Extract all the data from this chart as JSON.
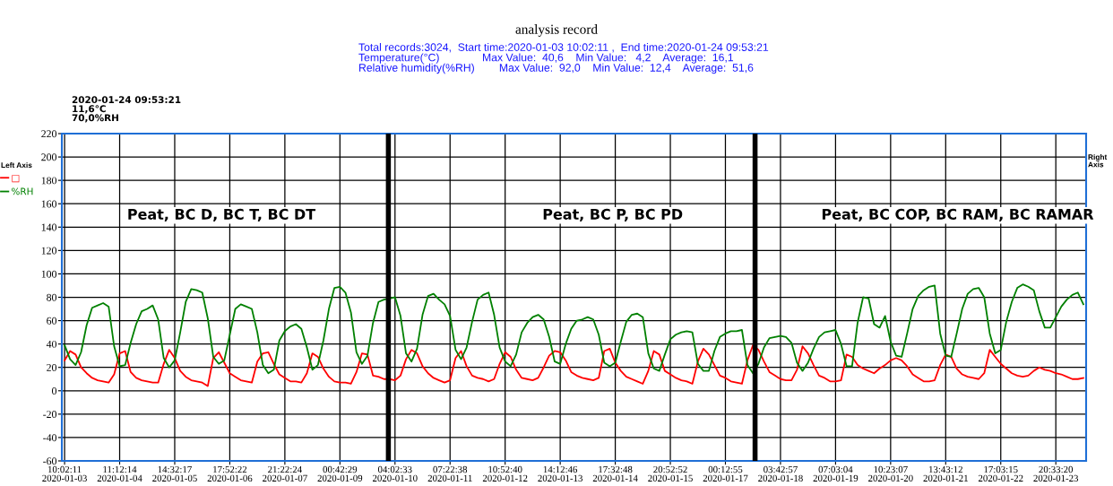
{
  "chart_data": {
    "type": "line",
    "title": "analysis record",
    "subtitle": "Total records:3024,  Start time:2020-01-03 10:02:11 ,  End time:2020-01-24 09:53:21\nTemperature(°C)              Max Value:  40,6    Min Value:   4,2    Average:  16,1\nRelative humidity(%RH)        Max Value:  92,0    Min Value:  12,4    Average:  51,6",
    "legend_title": "Left Axis",
    "annotations": [
      "Peat, BC D, BC T, BC DT",
      "Peat, BC P, BC PD",
      "Peat, BC COP, BC RAM, BC RAMAR",
      "2020-01-24 09:53:21\n11,6°C\n70,0%RH",
      "Right Axis"
    ],
    "categories": [
      "10:02:11\n2020-01-03",
      null,
      null,
      null,
      null,
      null,
      null,
      null,
      null,
      null,
      "11:12:14\n2020-01-04",
      null,
      null,
      null,
      null,
      null,
      null,
      null,
      null,
      null,
      "14:32:17\n2020-01-05",
      null,
      null,
      null,
      null,
      null,
      null,
      null,
      null,
      null,
      "17:52:22\n2020-01-06",
      null,
      null,
      null,
      null,
      null,
      null,
      null,
      null,
      null,
      "21:22:24\n2020-01-07",
      null,
      null,
      null,
      null,
      null,
      null,
      null,
      null,
      null,
      "00:42:29\n2020-01-09",
      null,
      null,
      null,
      null,
      null,
      null,
      null,
      null,
      null,
      "04:02:33\n2020-01-10",
      null,
      null,
      null,
      null,
      null,
      null,
      null,
      null,
      null,
      "07:22:38\n2020-01-11",
      null,
      null,
      null,
      null,
      null,
      null,
      null,
      null,
      null,
      "10:52:40\n2020-01-12",
      null,
      null,
      null,
      null,
      null,
      null,
      null,
      null,
      null,
      "14:12:46\n2020-01-13",
      null,
      null,
      null,
      null,
      null,
      null,
      null,
      null,
      null,
      "17:32:48\n2020-01-14",
      null,
      null,
      null,
      null,
      null,
      null,
      null,
      null,
      null,
      "20:52:52\n2020-01-15",
      null,
      null,
      null,
      null,
      null,
      null,
      null,
      null,
      null,
      "00:12:55\n2020-01-17",
      null,
      null,
      null,
      null,
      null,
      null,
      null,
      null,
      null,
      "03:42:57\n2020-01-18",
      null,
      null,
      null,
      null,
      null,
      null,
      null,
      null,
      null,
      "07:03:04\n2020-01-19",
      null,
      null,
      null,
      null,
      null,
      null,
      null,
      null,
      null,
      "10:23:07\n2020-01-20",
      null,
      null,
      null,
      null,
      null,
      null,
      null,
      null,
      null,
      "13:43:12\n2020-01-21",
      null,
      null,
      null,
      null,
      null,
      null,
      null,
      null,
      null,
      "17:03:15\n2020-01-22",
      null,
      null,
      null,
      null,
      null,
      null,
      null,
      null,
      null,
      "20:33:20\n2020-01-23",
      null,
      null,
      null,
      null,
      null
    ],
    "series": [
      {
        "name": "□",
        "color": "#ff0000",
        "values": [
          26,
          34,
          31,
          20,
          15,
          11,
          9,
          8,
          7,
          14,
          32,
          34,
          16,
          11,
          9,
          8,
          7,
          7,
          23,
          35,
          28,
          17,
          12,
          9,
          8,
          7,
          4,
          28,
          33,
          24,
          15,
          12,
          9,
          8,
          7,
          25,
          32,
          33,
          23,
          14,
          11,
          8,
          8,
          7,
          15,
          32,
          29,
          19,
          12,
          8,
          7,
          7,
          6,
          16,
          32,
          31,
          13,
          12,
          10,
          10,
          9,
          13,
          27,
          35,
          32,
          21,
          15,
          11,
          9,
          7,
          9,
          28,
          34,
          21,
          13,
          11,
          10,
          8,
          10,
          23,
          33,
          29,
          18,
          11,
          10,
          9,
          11,
          20,
          30,
          34,
          33,
          26,
          16,
          13,
          11,
          10,
          9,
          11,
          34,
          36,
          24,
          17,
          12,
          10,
          8,
          6,
          17,
          34,
          31,
          17,
          14,
          11,
          9,
          8,
          6,
          25,
          36,
          31,
          22,
          13,
          11,
          8,
          7,
          6,
          26,
          39,
          35,
          25,
          16,
          13,
          10,
          9,
          9,
          18,
          38,
          32,
          22,
          13,
          11,
          8,
          8,
          9,
          31,
          29,
          22,
          19,
          17,
          15,
          19,
          22,
          26,
          28,
          26,
          21,
          14,
          11,
          8,
          8,
          9,
          22,
          31,
          29,
          19,
          14,
          12,
          11,
          10,
          15,
          35,
          29,
          23,
          19,
          15,
          13,
          12,
          13,
          17,
          20,
          18,
          17,
          15,
          14,
          12,
          10,
          10,
          11
        ]
      },
      {
        "name": "%RH",
        "color": "#008000",
        "values": [
          39,
          27,
          22,
          33,
          56,
          71,
          73,
          75,
          72,
          38,
          21,
          22,
          41,
          57,
          68,
          70,
          73,
          61,
          28,
          20,
          26,
          50,
          76,
          87,
          86,
          84,
          62,
          29,
          23,
          26,
          48,
          70,
          74,
          72,
          70,
          50,
          22,
          15,
          18,
          43,
          51,
          55,
          57,
          53,
          37,
          18,
          22,
          43,
          70,
          88,
          89,
          84,
          67,
          33,
          23,
          30,
          58,
          76,
          78,
          79,
          80,
          64,
          32,
          25,
          36,
          65,
          81,
          83,
          78,
          74,
          64,
          35,
          27,
          37,
          59,
          78,
          82,
          84,
          65,
          37,
          25,
          21,
          31,
          50,
          58,
          63,
          65,
          61,
          46,
          25,
          23,
          40,
          53,
          60,
          61,
          63,
          61,
          48,
          24,
          21,
          24,
          42,
          59,
          65,
          66,
          63,
          32,
          19,
          17,
          31,
          44,
          48,
          50,
          51,
          50,
          23,
          17,
          17,
          34,
          46,
          49,
          51,
          51,
          52,
          22,
          15,
          23,
          37,
          45,
          46,
          47,
          46,
          41,
          24,
          17,
          24,
          36,
          46,
          50,
          51,
          52,
          40,
          21,
          21,
          58,
          80,
          79,
          57,
          54,
          64,
          42,
          30,
          29,
          49,
          70,
          81,
          86,
          89,
          90,
          49,
          30,
          29,
          49,
          70,
          83,
          87,
          88,
          80,
          49,
          32,
          35,
          59,
          76,
          88,
          91,
          89,
          86,
          68,
          54,
          54,
          63,
          72,
          78,
          82,
          84,
          74
        ]
      }
    ],
    "ylim": [
      -60,
      220
    ],
    "yticks": [
      -60,
      -40,
      -20,
      0,
      20,
      40,
      60,
      80,
      100,
      120,
      140,
      160,
      180,
      200,
      220
    ],
    "grid": true,
    "legend": "left",
    "line_style": "solid",
    "marker": "none"
  }
}
